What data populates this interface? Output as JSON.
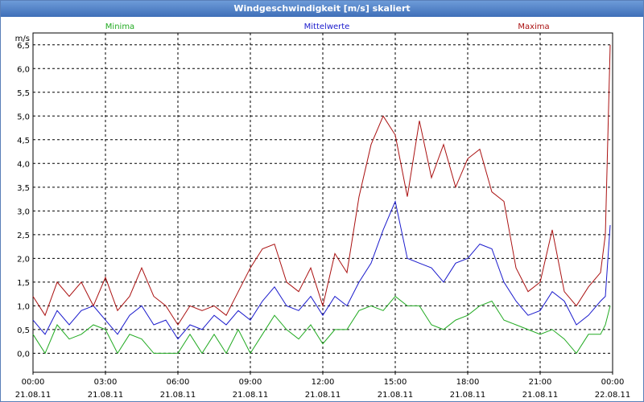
{
  "window": {
    "title": "Windgeschwindigkeit [m/s] skaliert"
  },
  "chart_data": {
    "type": "line",
    "title": "Windgeschwindigkeit [m/s] skaliert",
    "ylabel": "m/s",
    "ylim": [
      -0.4,
      6.75
    ],
    "yticks": [
      0.0,
      0.5,
      1.0,
      1.5,
      2.0,
      2.5,
      3.0,
      3.5,
      4.0,
      4.5,
      5.0,
      5.5,
      6.0,
      6.5
    ],
    "ytick_labels": [
      "0,0",
      "0,5",
      "1,0",
      "1,5",
      "2,0",
      "2,5",
      "3,0",
      "3,5",
      "4,0",
      "4,5",
      "5,0",
      "5,5",
      "6,0",
      "6,5"
    ],
    "xlim": [
      0,
      24
    ],
    "xticks": [
      0,
      3,
      6,
      9,
      12,
      15,
      18,
      21,
      24
    ],
    "xtick_labels": [
      [
        "00:00",
        "21.08.11"
      ],
      [
        "03:00",
        "21.08.11"
      ],
      [
        "06:00",
        "21.08.11"
      ],
      [
        "09:00",
        "21.08.11"
      ],
      [
        "12:00",
        "21.08.11"
      ],
      [
        "15:00",
        "21.08.11"
      ],
      [
        "18:00",
        "21.08.11"
      ],
      [
        "21:00",
        "21.08.11"
      ],
      [
        "00:00",
        "22.08.11"
      ]
    ],
    "grid": true,
    "legend_position": "top",
    "x": [
      0.0,
      0.5,
      1.0,
      1.5,
      2.0,
      2.5,
      3.0,
      3.5,
      4.0,
      4.5,
      5.0,
      5.5,
      6.0,
      6.5,
      7.0,
      7.5,
      8.0,
      8.5,
      9.0,
      9.5,
      10.0,
      10.5,
      11.0,
      11.5,
      12.0,
      12.5,
      13.0,
      13.5,
      14.0,
      14.5,
      15.0,
      15.5,
      16.0,
      16.5,
      17.0,
      17.5,
      18.0,
      18.5,
      19.0,
      19.5,
      20.0,
      20.5,
      21.0,
      21.5,
      22.0,
      22.5,
      23.0,
      23.5,
      23.7,
      23.9
    ],
    "series": [
      {
        "name": "Minima",
        "color": "#22aa22",
        "values": [
          0.4,
          0.0,
          0.6,
          0.3,
          0.4,
          0.6,
          0.5,
          0.0,
          0.4,
          0.3,
          0.0,
          0.0,
          0.0,
          0.4,
          0.0,
          0.4,
          0.0,
          0.5,
          0.0,
          0.4,
          0.8,
          0.5,
          0.3,
          0.6,
          0.2,
          0.5,
          0.5,
          0.9,
          1.0,
          0.9,
          1.2,
          1.0,
          1.0,
          0.6,
          0.5,
          0.7,
          0.8,
          1.0,
          1.1,
          0.7,
          0.6,
          0.5,
          0.4,
          0.5,
          0.3,
          0.0,
          0.4,
          0.4,
          0.6,
          1.0
        ]
      },
      {
        "name": "Mittelwerte",
        "color": "#1a1acc",
        "values": [
          0.7,
          0.4,
          0.9,
          0.6,
          0.9,
          1.0,
          0.7,
          0.4,
          0.8,
          1.0,
          0.6,
          0.7,
          0.3,
          0.6,
          0.5,
          0.8,
          0.6,
          0.9,
          0.7,
          1.1,
          1.4,
          1.0,
          0.9,
          1.2,
          0.8,
          1.2,
          1.0,
          1.5,
          1.9,
          2.6,
          3.2,
          2.0,
          1.9,
          1.8,
          1.5,
          1.9,
          2.0,
          2.3,
          2.2,
          1.5,
          1.1,
          0.8,
          0.9,
          1.3,
          1.1,
          0.6,
          0.8,
          1.1,
          1.2,
          2.7
        ]
      },
      {
        "name": "Maxima",
        "color": "#aa1111",
        "values": [
          1.2,
          0.8,
          1.5,
          1.2,
          1.5,
          1.0,
          1.6,
          0.9,
          1.2,
          1.8,
          1.2,
          1.0,
          0.6,
          1.0,
          0.9,
          1.0,
          0.8,
          1.3,
          1.8,
          2.2,
          2.3,
          1.5,
          1.3,
          1.8,
          1.0,
          2.1,
          1.7,
          3.3,
          4.4,
          5.0,
          4.6,
          3.3,
          4.9,
          3.7,
          4.4,
          3.5,
          4.1,
          4.3,
          3.4,
          3.2,
          1.8,
          1.3,
          1.5,
          2.6,
          1.3,
          1.0,
          1.4,
          1.7,
          2.5,
          6.5
        ]
      }
    ]
  }
}
